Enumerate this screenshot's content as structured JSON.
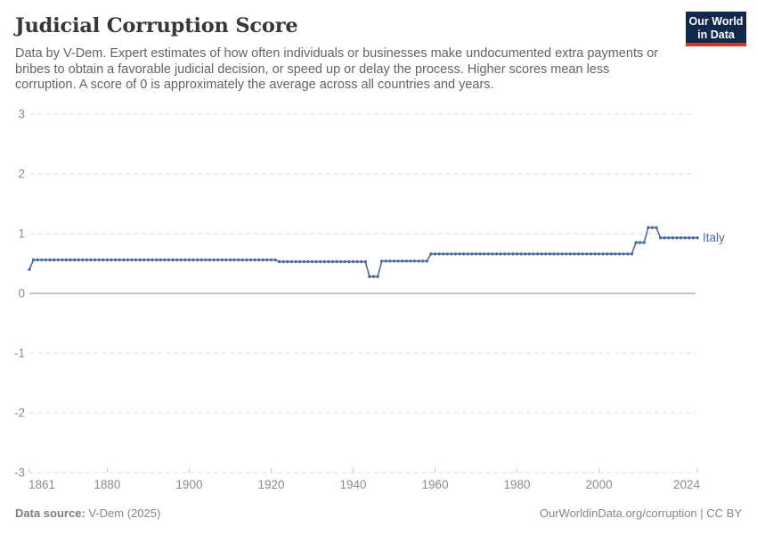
{
  "header": {
    "title": "Judicial Corruption Score",
    "subtitle": "Data by V-Dem. Expert estimates of how often individuals or businesses make undocumented extra payments or bribes to obtain a favorable judicial decision, or speed up or delay the process. Higher scores mean less corruption. A score of 0 is approximately the average across all countries and years.",
    "logo": {
      "line1": "Our World",
      "line2": "in Data",
      "bg_color": "#12294d",
      "accent_color": "#dc3421"
    }
  },
  "chart_data": {
    "type": "line",
    "title": "Judicial Corruption Score",
    "entity_label": "Italy",
    "xlim": [
      1861,
      2024
    ],
    "ylim": [
      -3,
      3
    ],
    "x_ticks": [
      1861,
      1880,
      1900,
      1920,
      1940,
      1960,
      1980,
      2000,
      2024
    ],
    "y_ticks": [
      3,
      2,
      1,
      0,
      -1,
      -2,
      -3
    ],
    "grid": "horizontal-dashed",
    "legend_position": "end-of-line",
    "line_color": "#4C6A9C",
    "axis_text_color": "#8b8b8b",
    "series": [
      {
        "name": "Italy",
        "segments": [
          {
            "from": 1861,
            "to": 1861,
            "value": 0.4
          },
          {
            "from": 1862,
            "to": 1921,
            "value": 0.56
          },
          {
            "from": 1922,
            "to": 1943,
            "value": 0.53
          },
          {
            "from": 1944,
            "to": 1946,
            "value": 0.28
          },
          {
            "from": 1947,
            "to": 1958,
            "value": 0.54
          },
          {
            "from": 1959,
            "to": 2008,
            "value": 0.66
          },
          {
            "from": 2009,
            "to": 2011,
            "value": 0.85
          },
          {
            "from": 2012,
            "to": 2014,
            "value": 1.1
          },
          {
            "from": 2015,
            "to": 2024,
            "value": 0.93
          }
        ]
      }
    ]
  },
  "footer": {
    "source_label": "Data source:",
    "source_value": " V-Dem (2025)",
    "link": "OurWorldinData.org/corruption | CC BY"
  }
}
